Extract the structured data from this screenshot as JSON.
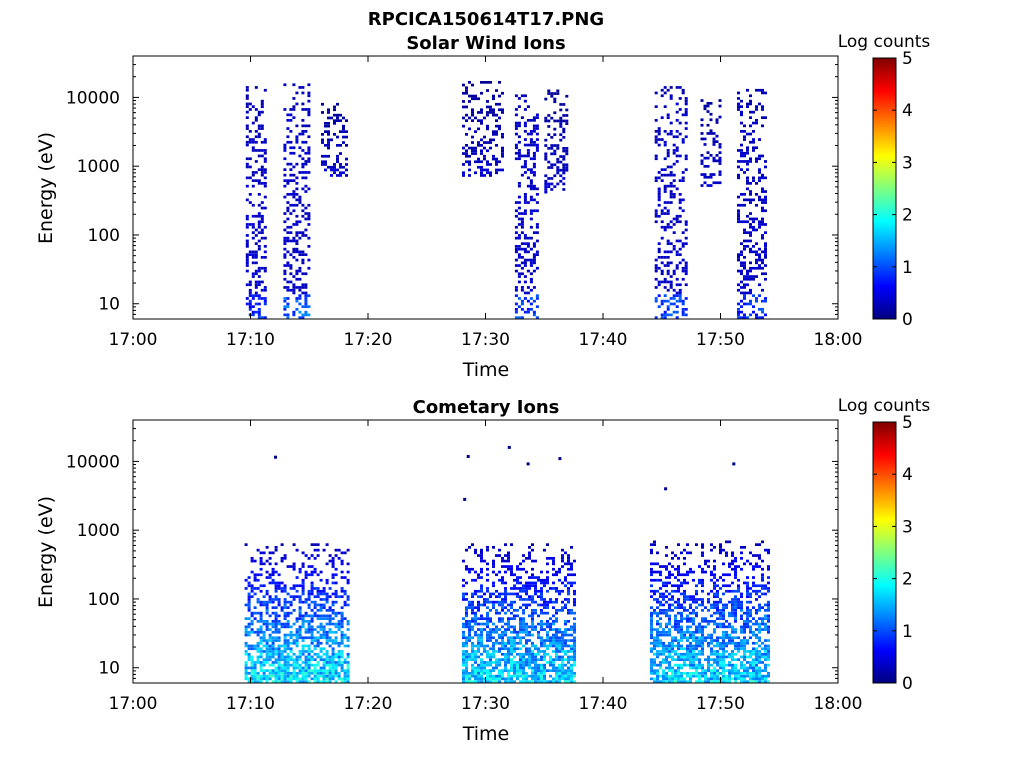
{
  "figure": {
    "title": "RPCICA150614T17.PNG",
    "colormap_stops": [
      "#00007f",
      "#0000ff",
      "#007fff",
      "#00ffff",
      "#7fff7f",
      "#ffff00",
      "#ff7f00",
      "#ff0000",
      "#7f0000"
    ]
  },
  "chart_data": [
    {
      "type": "heatmap",
      "title": "Solar Wind Ions",
      "xlabel": "Time",
      "ylabel": "Energy (eV)",
      "xlim": [
        "17:00",
        "18:00"
      ],
      "xticks": [
        "17:00",
        "17:10",
        "17:20",
        "17:30",
        "17:40",
        "17:50",
        "18:00"
      ],
      "yscale": "log",
      "ylim": [
        6,
        40000
      ],
      "yticks": [
        10,
        100,
        1000,
        10000
      ],
      "yticklabels": [
        "10",
        "100",
        "1000",
        "10000"
      ],
      "colorbar": {
        "label": "Log counts",
        "range": [
          0,
          5
        ],
        "ticks": [
          "0",
          "1",
          "2",
          "3",
          "4",
          "5"
        ]
      },
      "bursts": [
        {
          "start_min": 9.6,
          "end_min": 11.2,
          "emin": 6,
          "emax": 14000,
          "peak_log_counts": 1.0
        },
        {
          "start_min": 12.8,
          "end_min": 14.9,
          "emin": 6,
          "emax": 15000,
          "peak_log_counts": 1.4
        },
        {
          "start_min": 16.0,
          "end_min": 18.2,
          "emin": 700,
          "emax": 9000,
          "peak_log_counts": 0.5
        },
        {
          "start_min": 28.0,
          "end_min": 31.5,
          "emin": 700,
          "emax": 16000,
          "peak_log_counts": 0.5
        },
        {
          "start_min": 32.5,
          "end_min": 34.4,
          "emin": 6,
          "emax": 13000,
          "peak_log_counts": 1.2
        },
        {
          "start_min": 35.0,
          "end_min": 37.0,
          "emin": 400,
          "emax": 12000,
          "peak_log_counts": 0.5
        },
        {
          "start_min": 44.4,
          "end_min": 47.1,
          "emin": 6,
          "emax": 14000,
          "peak_log_counts": 1.2
        },
        {
          "start_min": 48.3,
          "end_min": 49.9,
          "emin": 500,
          "emax": 9000,
          "peak_log_counts": 0.5
        },
        {
          "start_min": 51.4,
          "end_min": 53.8,
          "emin": 6,
          "emax": 13000,
          "peak_log_counts": 1.1
        }
      ]
    },
    {
      "type": "heatmap",
      "title": "Cometary Ions",
      "xlabel": "Time",
      "ylabel": "Energy (eV)",
      "xlim": [
        "17:00",
        "18:00"
      ],
      "xticks": [
        "17:00",
        "17:10",
        "17:20",
        "17:30",
        "17:40",
        "17:50",
        "18:00"
      ],
      "yscale": "log",
      "ylim": [
        6,
        40000
      ],
      "yticks": [
        10,
        100,
        1000,
        10000
      ],
      "yticklabels": [
        "10",
        "100",
        "1000",
        "10000"
      ],
      "colorbar": {
        "label": "Log counts",
        "range": [
          0,
          5
        ],
        "ticks": [
          "0",
          "1",
          "2",
          "3",
          "4",
          "5"
        ]
      },
      "bursts": [
        {
          "start_min": 9.5,
          "end_min": 18.3,
          "emin": 6,
          "emax": 600,
          "peak_log_counts": 2.3
        },
        {
          "start_min": 28.0,
          "end_min": 37.5,
          "emin": 6,
          "emax": 600,
          "peak_log_counts": 2.2
        },
        {
          "start_min": 44.0,
          "end_min": 54.0,
          "emin": 6,
          "emax": 700,
          "peak_log_counts": 2.2
        }
      ],
      "isolated_points": [
        {
          "time_min": 12.0,
          "energy": 11500
        },
        {
          "time_min": 28.1,
          "energy": 2800
        },
        {
          "time_min": 28.4,
          "energy": 11800
        },
        {
          "time_min": 31.9,
          "energy": 16000
        },
        {
          "time_min": 33.5,
          "energy": 9200
        },
        {
          "time_min": 36.2,
          "energy": 11000
        },
        {
          "time_min": 45.2,
          "energy": 4000
        },
        {
          "time_min": 51.0,
          "energy": 9200
        }
      ]
    }
  ]
}
